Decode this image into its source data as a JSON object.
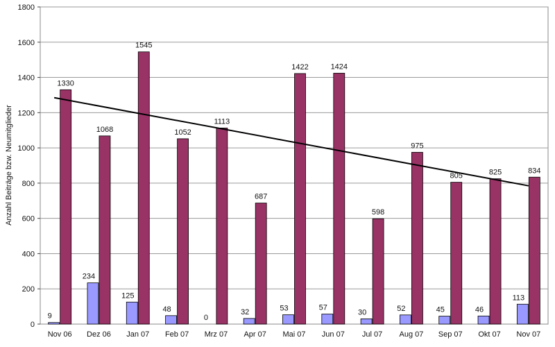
{
  "chart_data": {
    "type": "bar",
    "title": "",
    "xlabel": "",
    "ylabel": "Anzahl Beiträge bzw. Neumitglieder",
    "ylim": [
      0,
      1800
    ],
    "yticks": [
      0,
      200,
      400,
      600,
      800,
      1000,
      1200,
      1400,
      1600,
      1800
    ],
    "categories": [
      "Nov 06",
      "Dez 06",
      "Jan 07",
      "Feb 07",
      "Mrz 07",
      "Apr 07",
      "Mai 07",
      "Jun 07",
      "Jul 07",
      "Aug 07",
      "Sep 07",
      "Okt 07",
      "Nov 07"
    ],
    "series": [
      {
        "color": "#9999ff",
        "values": [
          9,
          234,
          125,
          48,
          0,
          32,
          53,
          57,
          30,
          52,
          45,
          46,
          113
        ]
      },
      {
        "color": "#993366",
        "values": [
          1330,
          1068,
          1545,
          1052,
          1113,
          687,
          1422,
          1424,
          598,
          975,
          805,
          825,
          834
        ]
      }
    ],
    "trendline": {
      "type": "linear",
      "series_index": 1,
      "color": "#000000",
      "start": 1285,
      "end": 785
    },
    "grid": true,
    "legend": "none",
    "plot_background": "#ffffff"
  }
}
